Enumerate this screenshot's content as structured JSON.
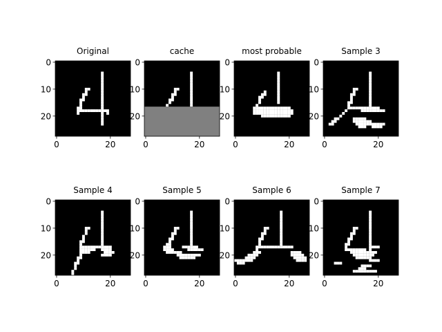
{
  "chart_data": {
    "type": "heatmap",
    "image_size": [
      28,
      28
    ],
    "colormap": {
      "0": "#000000",
      "0.5": "#808080",
      "1": "#ffffff"
    },
    "x_ticks": [
      0,
      20
    ],
    "y_ticks": [
      0,
      10,
      20
    ],
    "panels": [
      {
        "title": "Original",
        "strokes": [
          [
            16.5,
            4,
            16.5,
            23
          ],
          [
            11.5,
            10,
            9.5,
            14
          ],
          [
            9.5,
            14,
            8,
            18
          ],
          [
            8,
            18,
            19,
            18
          ],
          [
            19,
            18,
            19,
            19
          ],
          [
            8,
            18,
            8,
            19
          ]
        ]
      },
      {
        "title": "cache",
        "strokes": [
          [
            16.5,
            4,
            16.5,
            16
          ],
          [
            11.5,
            10,
            9.5,
            14
          ],
          [
            9.5,
            14,
            8,
            16
          ]
        ],
        "masked_from_row": 17
      },
      {
        "title": "most probable",
        "strokes": [
          [
            15.5,
            4,
            15.5,
            15
          ],
          [
            11,
            11,
            9,
            14
          ],
          [
            9,
            14,
            8,
            17
          ],
          [
            7,
            17,
            20,
            17
          ],
          [
            7,
            18,
            21,
            18
          ],
          [
            7,
            19,
            21,
            19
          ],
          [
            10,
            20,
            20,
            20
          ]
        ]
      },
      {
        "title": "Sample 3",
        "strokes": [
          [
            16.5,
            4,
            16.5,
            17
          ],
          [
            11.5,
            10,
            10,
            13
          ],
          [
            10,
            13,
            9,
            17
          ],
          [
            9,
            17,
            20,
            17
          ],
          [
            8,
            18,
            6,
            20
          ],
          [
            6,
            20,
            2,
            23
          ],
          [
            14,
            18,
            22,
            18
          ],
          [
            11,
            21,
            15,
            21
          ],
          [
            11,
            22,
            17,
            22
          ],
          [
            12,
            23,
            16,
            23
          ],
          [
            17,
            23,
            22,
            23
          ],
          [
            18,
            24,
            21,
            24
          ],
          [
            13,
            24,
            15,
            24
          ]
        ]
      },
      {
        "title": "Sample 4",
        "strokes": [
          [
            16.5,
            4,
            16.5,
            17
          ],
          [
            11.5,
            10,
            9.5,
            15
          ],
          [
            9.5,
            15,
            9,
            20
          ],
          [
            9,
            20,
            7,
            24
          ],
          [
            7,
            24,
            6,
            27
          ],
          [
            10,
            17,
            20,
            17
          ],
          [
            10,
            18,
            14,
            18
          ],
          [
            17,
            18,
            20,
            18
          ],
          [
            18,
            19,
            21,
            19
          ],
          [
            17,
            20,
            20,
            20
          ],
          [
            10,
            19,
            12,
            19
          ]
        ]
      },
      {
        "title": "Sample 5",
        "strokes": [
          [
            16.5,
            4,
            16.5,
            16
          ],
          [
            11.5,
            10,
            9.5,
            14
          ],
          [
            9.5,
            14,
            8,
            17
          ],
          [
            7,
            17,
            9,
            17
          ],
          [
            7,
            18,
            10,
            18
          ],
          [
            8,
            19,
            13,
            19
          ],
          [
            16,
            18,
            21,
            18
          ],
          [
            12,
            20,
            20,
            20
          ],
          [
            13,
            21,
            18,
            21
          ],
          [
            14,
            17,
            19,
            17
          ]
        ]
      },
      {
        "title": "Sample 6",
        "strokes": [
          [
            16.5,
            4,
            16.5,
            17
          ],
          [
            11.5,
            10,
            9.5,
            14
          ],
          [
            9.5,
            14,
            8,
            18
          ],
          [
            10,
            17,
            21,
            17
          ],
          [
            7,
            19,
            9,
            19
          ],
          [
            5,
            20,
            8,
            20
          ],
          [
            4,
            21,
            7,
            21
          ],
          [
            0,
            22,
            6,
            22
          ],
          [
            1,
            23,
            3,
            23
          ],
          [
            21,
            19,
            24,
            19
          ],
          [
            21,
            20,
            25,
            20
          ],
          [
            22,
            21,
            26,
            21
          ],
          [
            23,
            22,
            26,
            22
          ]
        ]
      },
      {
        "title": "Sample 7",
        "strokes": [
          [
            16.5,
            4,
            16.5,
            20
          ],
          [
            11.5,
            10,
            9.5,
            14
          ],
          [
            9.5,
            14,
            8,
            17
          ],
          [
            8,
            17,
            8,
            18
          ],
          [
            9,
            18,
            15,
            18
          ],
          [
            10,
            19,
            19,
            19
          ],
          [
            11,
            20,
            18,
            20
          ],
          [
            12,
            21,
            17,
            21
          ],
          [
            18,
            17,
            20,
            17
          ],
          [
            17,
            22,
            20,
            22
          ],
          [
            4,
            23,
            6,
            23
          ],
          [
            14,
            24,
            17,
            24
          ],
          [
            11,
            26,
            19,
            26
          ],
          [
            13,
            25,
            15,
            25
          ]
        ]
      }
    ]
  }
}
